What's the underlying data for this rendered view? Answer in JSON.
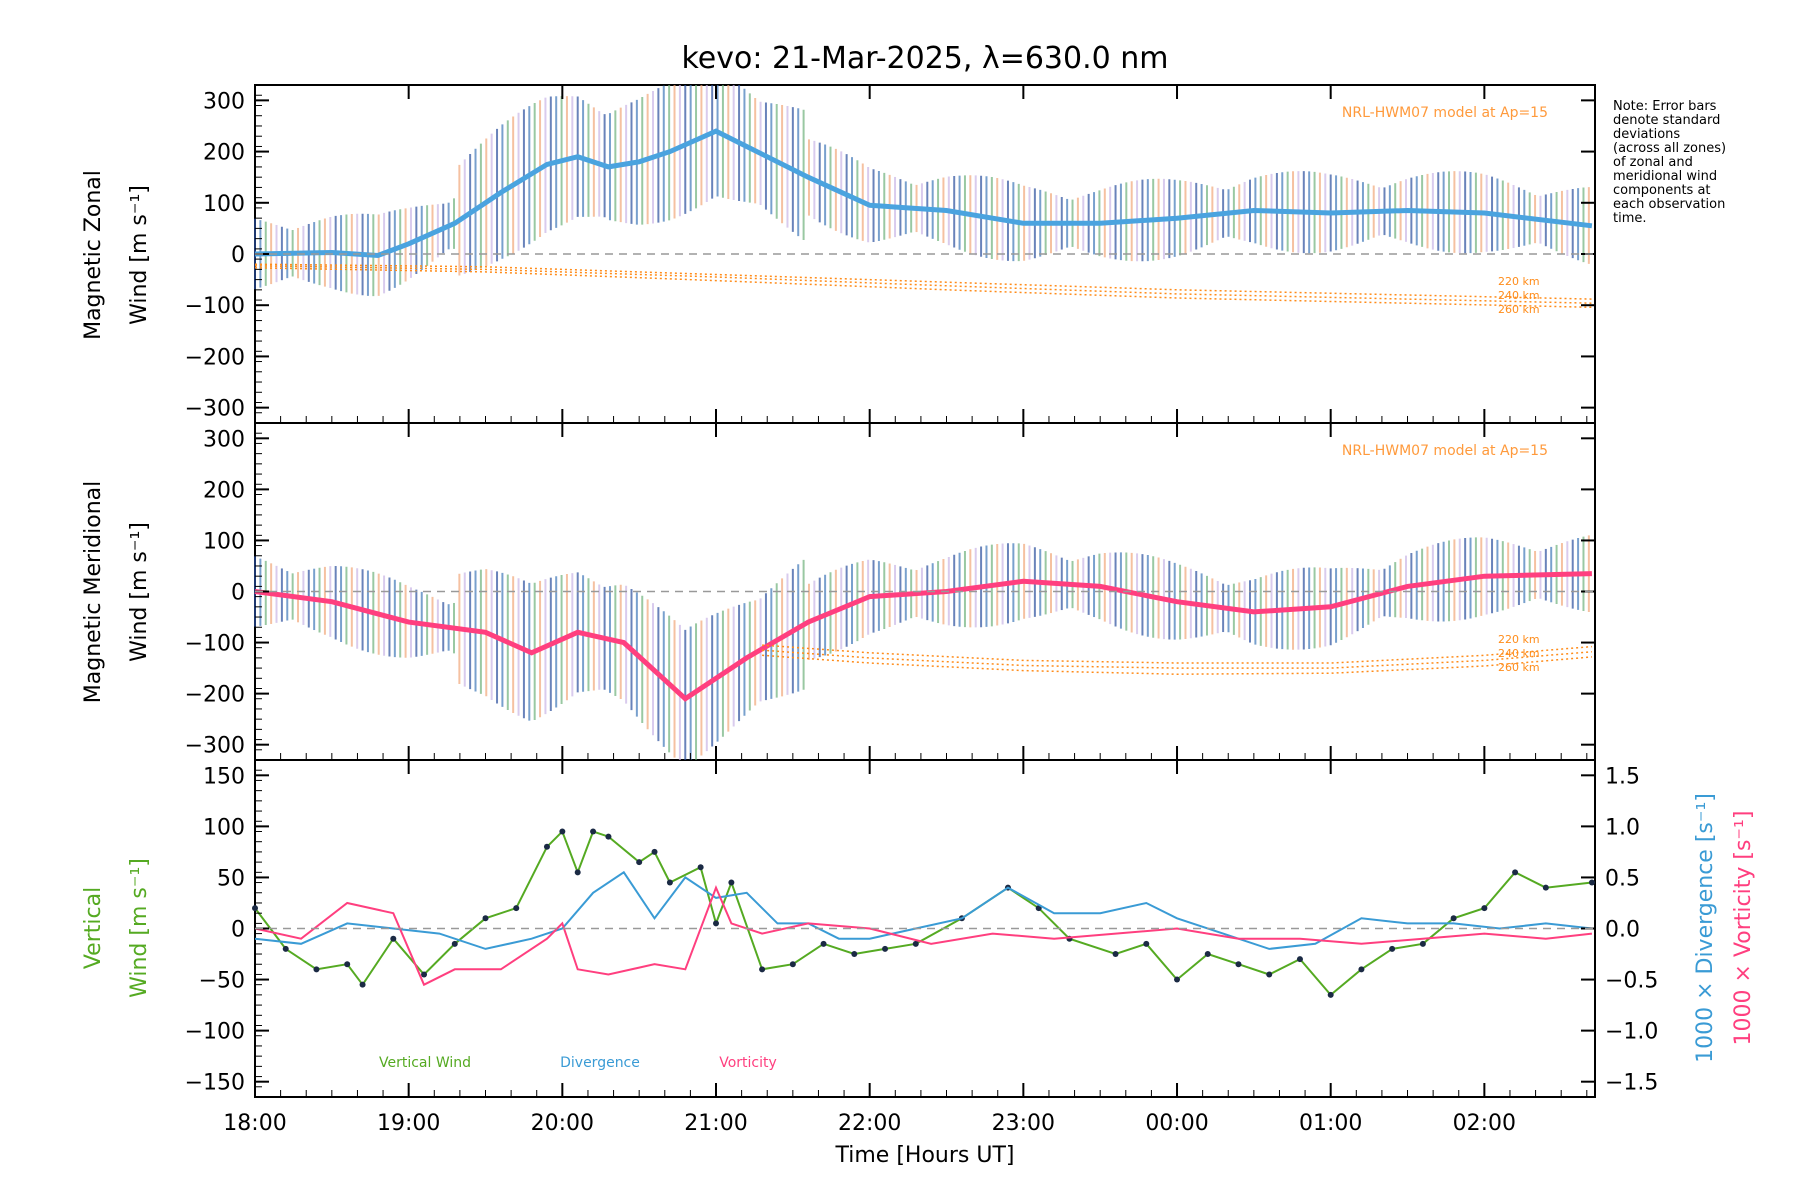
{
  "chart_data": [
    {
      "type": "line",
      "panel": "zonal",
      "title": "kevo: 21-Mar-2025, λ=630.0 nm",
      "ylabel_line1": "Magnetic Zonal",
      "ylabel_line2": "Wind [m s⁻¹]",
      "ylim": [
        -330,
        330
      ],
      "yticks": [
        "300",
        "200",
        "100",
        "0",
        "−100",
        "−200",
        "−300"
      ],
      "ytick_values": [
        300,
        200,
        100,
        0,
        -100,
        -200,
        -300
      ],
      "model_label": "NRL-HWM07 model at Ap=15",
      "model_alt_labels": [
        "220 km",
        "240 km",
        "260 km"
      ],
      "series": [
        {
          "name": "Mean zonal wind",
          "color": "#4aa3df",
          "x": [
            18.0,
            18.5,
            18.8,
            19.0,
            19.3,
            19.6,
            19.9,
            20.1,
            20.3,
            20.5,
            20.7,
            21.0,
            21.2,
            21.6,
            22.0,
            22.5,
            23.0,
            23.5,
            24.0,
            24.5,
            25.0,
            25.5,
            26.0,
            26.7
          ],
          "values": [
            0,
            3,
            -3,
            20,
            60,
            120,
            175,
            190,
            170,
            180,
            200,
            240,
            210,
            150,
            95,
            85,
            60,
            60,
            70,
            85,
            80,
            85,
            80,
            55
          ]
        },
        {
          "name": "NRL-HWM07 220 km",
          "color": "#ff8c1a",
          "x": [
            18.0,
            19.5,
            21.0,
            22.5,
            24.0,
            25.5,
            26.7
          ],
          "values": [
            -20,
            -25,
            -40,
            -55,
            -70,
            -80,
            -88
          ]
        },
        {
          "name": "NRL-HWM07 240 km",
          "color": "#ff8c1a",
          "x": [
            18.0,
            19.5,
            21.0,
            22.5,
            24.0,
            25.5,
            26.7
          ],
          "values": [
            -23,
            -30,
            -45,
            -62,
            -78,
            -88,
            -96
          ]
        },
        {
          "name": "NRL-HWM07 260 km",
          "color": "#ff8c1a",
          "x": [
            18.0,
            19.5,
            21.0,
            22.5,
            24.0,
            25.5,
            26.7
          ],
          "values": [
            -27,
            -35,
            -52,
            -70,
            -86,
            -96,
            -104
          ]
        }
      ]
    },
    {
      "type": "line",
      "panel": "meridional",
      "ylabel_line1": "Magnetic Meridional",
      "ylabel_line2": "Wind [m s⁻¹]",
      "ylim": [
        -330,
        330
      ],
      "yticks": [
        "300",
        "200",
        "100",
        "0",
        "−100",
        "−200",
        "−300"
      ],
      "ytick_values": [
        300,
        200,
        100,
        0,
        -100,
        -200,
        -300
      ],
      "model_label": "NRL-HWM07 model at Ap=15",
      "model_alt_labels": [
        "220 km",
        "240 km",
        "260 km"
      ],
      "series": [
        {
          "name": "Mean meridional wind",
          "color": "#ff3f7f",
          "x": [
            18.0,
            18.5,
            19.0,
            19.5,
            19.8,
            20.1,
            20.4,
            20.8,
            21.2,
            21.6,
            22.0,
            22.5,
            23.0,
            23.5,
            24.0,
            24.5,
            25.0,
            25.5,
            26.0,
            26.7
          ],
          "values": [
            0,
            -20,
            -60,
            -80,
            -120,
            -80,
            -100,
            -210,
            -130,
            -60,
            -10,
            0,
            20,
            10,
            -20,
            -40,
            -30,
            10,
            30,
            35
          ]
        },
        {
          "name": "NRL-HWM07 220 km",
          "color": "#ff8c1a",
          "x": [
            21.3,
            22.0,
            23.0,
            24.0,
            25.0,
            26.0,
            26.7
          ],
          "values": [
            -105,
            -120,
            -135,
            -140,
            -140,
            -125,
            -108
          ]
        },
        {
          "name": "NRL-HWM07 240 km",
          "color": "#ff8c1a",
          "x": [
            21.3,
            22.0,
            23.0,
            24.0,
            25.0,
            26.0,
            26.7
          ],
          "values": [
            -115,
            -130,
            -145,
            -150,
            -150,
            -135,
            -118
          ]
        },
        {
          "name": "NRL-HWM07 260 km",
          "color": "#ff8c1a",
          "x": [
            21.3,
            22.0,
            23.0,
            24.0,
            25.0,
            26.0,
            26.7
          ],
          "values": [
            -125,
            -140,
            -155,
            -162,
            -160,
            -146,
            -128
          ]
        }
      ]
    },
    {
      "type": "line",
      "panel": "vertical",
      "ylabel_line1": "Vertical",
      "ylabel_line2": "Wind [m s⁻¹]",
      "ylim": [
        -165,
        165
      ],
      "yticks": [
        "150",
        "100",
        "50",
        "0",
        "−50",
        "−100",
        "−150"
      ],
      "ytick_values": [
        150,
        100,
        50,
        0,
        -50,
        -100,
        -150
      ],
      "y2lim": [
        -1.65,
        1.65
      ],
      "y2ticks": [
        "1.5",
        "1.0",
        "0.5",
        "0.0",
        "−0.5",
        "−1.0",
        "−1.5"
      ],
      "y2tick_values": [
        1.5,
        1.0,
        0.5,
        0.0,
        -0.5,
        -1.0,
        -1.5
      ],
      "y2label_div": "1000 × Divergence [s⁻¹]",
      "y2label_vort": "1000 × Vorticity [s⁻¹]",
      "xlabel": "Time [Hours UT]",
      "xticks": [
        "18:00",
        "19:00",
        "20:00",
        "21:00",
        "22:00",
        "23:00",
        "00:00",
        "01:00",
        "02:00"
      ],
      "xtick_values": [
        18,
        19,
        20,
        21,
        22,
        23,
        24,
        25,
        26
      ],
      "xlim": [
        18.0,
        26.72
      ],
      "legend": [
        "Vertical Wind",
        "Divergence",
        "Vorticity"
      ],
      "series": [
        {
          "name": "Vertical Wind",
          "color": "#55aa22",
          "x": [
            18.0,
            18.2,
            18.4,
            18.6,
            18.7,
            18.9,
            19.1,
            19.3,
            19.5,
            19.7,
            19.9,
            20.0,
            20.1,
            20.2,
            20.3,
            20.5,
            20.6,
            20.7,
            20.9,
            21.0,
            21.1,
            21.3,
            21.5,
            21.7,
            21.9,
            22.1,
            22.3,
            22.6,
            22.9,
            23.1,
            23.3,
            23.6,
            23.8,
            24.0,
            24.2,
            24.4,
            24.6,
            24.8,
            25.0,
            25.2,
            25.4,
            25.6,
            25.8,
            26.0,
            26.2,
            26.4,
            26.7
          ],
          "values": [
            20,
            -20,
            -40,
            -35,
            -55,
            -10,
            -45,
            -15,
            10,
            20,
            80,
            95,
            55,
            95,
            90,
            65,
            75,
            45,
            60,
            5,
            45,
            -40,
            -35,
            -15,
            -25,
            -20,
            -15,
            10,
            40,
            20,
            -10,
            -25,
            -15,
            -50,
            -25,
            -35,
            -45,
            -30,
            -65,
            -40,
            -20,
            -15,
            10,
            20,
            55,
            40,
            45
          ]
        },
        {
          "name": "Divergence",
          "color": "#3a9bd5",
          "axis": "y2",
          "x": [
            18.0,
            18.3,
            18.6,
            18.9,
            19.2,
            19.5,
            19.8,
            20.0,
            20.2,
            20.4,
            20.6,
            20.8,
            21.0,
            21.2,
            21.4,
            21.6,
            21.8,
            22.0,
            22.3,
            22.6,
            22.9,
            23.2,
            23.5,
            23.8,
            24.0,
            24.3,
            24.6,
            24.9,
            25.2,
            25.5,
            25.8,
            26.1,
            26.4,
            26.7
          ],
          "values": [
            -0.1,
            -0.15,
            0.05,
            0.0,
            -0.05,
            -0.2,
            -0.1,
            0.0,
            0.35,
            0.55,
            0.1,
            0.5,
            0.3,
            0.35,
            0.05,
            0.05,
            -0.1,
            -0.1,
            0.0,
            0.1,
            0.4,
            0.15,
            0.15,
            0.25,
            0.1,
            -0.05,
            -0.2,
            -0.15,
            0.1,
            0.05,
            0.05,
            0.0,
            0.05,
            0.0
          ]
        },
        {
          "name": "Vorticity",
          "color": "#ff3f7f",
          "axis": "y2",
          "x": [
            18.0,
            18.3,
            18.6,
            18.9,
            19.1,
            19.3,
            19.6,
            19.9,
            20.0,
            20.1,
            20.3,
            20.6,
            20.8,
            21.0,
            21.1,
            21.3,
            21.6,
            22.0,
            22.4,
            22.8,
            23.2,
            23.6,
            24.0,
            24.4,
            24.8,
            25.2,
            25.6,
            26.0,
            26.4,
            26.7
          ],
          "values": [
            0.0,
            -0.1,
            0.25,
            0.15,
            -0.55,
            -0.4,
            -0.4,
            -0.1,
            0.05,
            -0.4,
            -0.45,
            -0.35,
            -0.4,
            0.4,
            0.05,
            -0.05,
            0.05,
            0.0,
            -0.15,
            -0.05,
            -0.1,
            -0.05,
            0.0,
            -0.1,
            -0.1,
            -0.15,
            -0.1,
            -0.05,
            -0.1,
            -0.05
          ]
        }
      ]
    }
  ],
  "note_lines": [
    "Note: Error bars",
    "denote standard",
    "deviations",
    "(across all zones)",
    "of zonal and",
    "meridional wind",
    "components at",
    "each observation",
    "time."
  ]
}
